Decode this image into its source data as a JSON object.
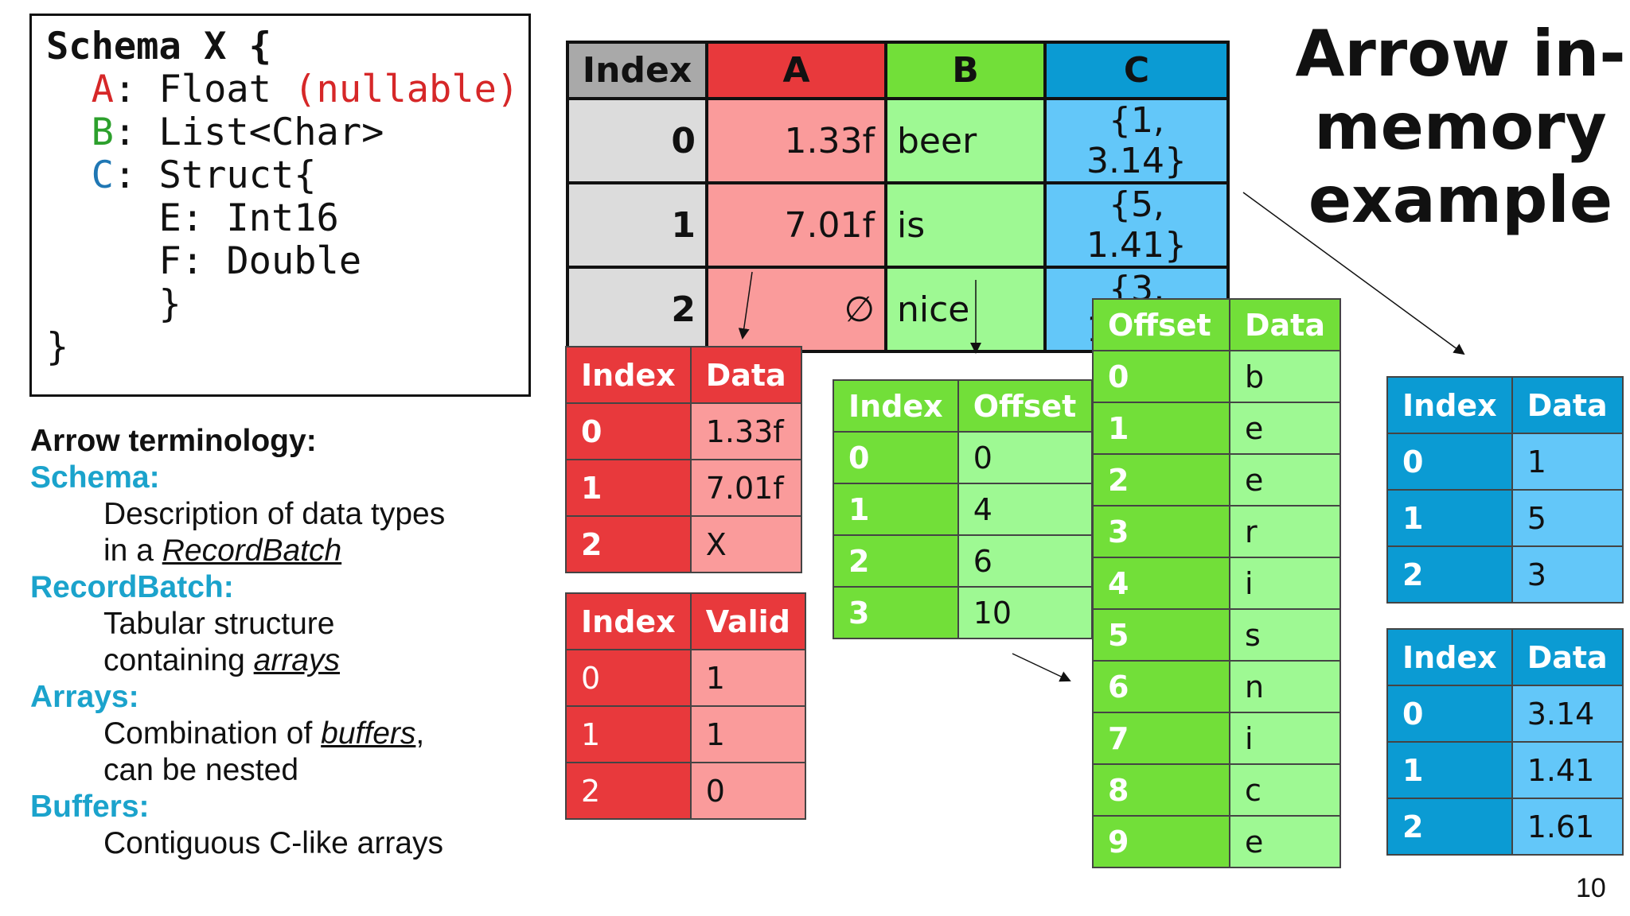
{
  "schema": {
    "lines": [
      {
        "parts": [
          {
            "text": "Schema X {",
            "cls": "s-dark s-bold"
          }
        ]
      },
      {
        "parts": [
          {
            "text": "  A",
            "cls": "s-red"
          },
          {
            "text": ": Float ",
            "cls": "s-dark"
          },
          {
            "text": "(nullable)",
            "cls": "s-red"
          }
        ]
      },
      {
        "parts": [
          {
            "text": "  B",
            "cls": "s-green"
          },
          {
            "text": ": List<Char>",
            "cls": "s-dark"
          }
        ]
      },
      {
        "parts": [
          {
            "text": "  C",
            "cls": "s-blue"
          },
          {
            "text": ": Struct{",
            "cls": "s-dark"
          }
        ]
      },
      {
        "parts": [
          {
            "text": "     E: Int16",
            "cls": "s-dark"
          }
        ]
      },
      {
        "parts": [
          {
            "text": "     F: Double",
            "cls": "s-dark"
          }
        ]
      },
      {
        "parts": [
          {
            "text": "     }",
            "cls": "s-dark"
          }
        ]
      },
      {
        "parts": [
          {
            "text": "}",
            "cls": "s-dark"
          }
        ]
      }
    ]
  },
  "terminology": {
    "heading": "Arrow terminology:",
    "items": [
      {
        "term": "Schema:",
        "desc": [
          [
            "Description of data types",
            ""
          ],
          [
            "in a ",
            "RecordBatch"
          ]
        ]
      },
      {
        "term": "RecordBatch:",
        "desc": [
          [
            "Tabular structure",
            ""
          ],
          [
            "containing ",
            "arrays"
          ]
        ]
      },
      {
        "term": "Arrays:",
        "desc": [
          [
            "Combination of ",
            "buffers",
            ","
          ],
          [
            "can be nested",
            ""
          ]
        ]
      },
      {
        "term": "Buffers:",
        "desc": [
          [
            "Contiguous C-like arrays",
            ""
          ]
        ]
      }
    ]
  },
  "title": [
    "Arrow in-",
    "memory",
    "example"
  ],
  "page_number": "10",
  "colors": {
    "red_head": "#e8393c",
    "red_light": "#fa9b9b",
    "green_head": "#72df39",
    "green_light": "#9ef993",
    "blue_head": "#0b9bd3",
    "blue_light": "#63c7f9",
    "gray_head": "#a9a9a9",
    "gray_light": "#dcdcdc"
  },
  "main_table": {
    "headers": [
      "Index",
      "A",
      "B",
      "C"
    ],
    "rows": [
      [
        "0",
        "1.33f",
        "beer",
        "{1, 3.14}"
      ],
      [
        "1",
        "7.01f",
        "is",
        "{5, 1.41}"
      ],
      [
        "2",
        "∅",
        "nice",
        "{3, 1.61}"
      ]
    ]
  },
  "buffers": {
    "a_data": {
      "headers": [
        "Index",
        "Data"
      ],
      "rows": [
        [
          "0",
          "1.33f"
        ],
        [
          "1",
          "7.01f"
        ],
        [
          "2",
          "X"
        ]
      ]
    },
    "a_valid": {
      "headers": [
        "Index",
        "Valid"
      ],
      "rows": [
        [
          "0",
          "1"
        ],
        [
          "1",
          "1"
        ],
        [
          "2",
          "0"
        ]
      ]
    },
    "b_offset": {
      "headers": [
        "Index",
        "Offset"
      ],
      "rows": [
        [
          "0",
          "0"
        ],
        [
          "1",
          "4"
        ],
        [
          "2",
          "6"
        ],
        [
          "3",
          "10"
        ]
      ]
    },
    "b_data": {
      "headers": [
        "Offset",
        "Data"
      ],
      "rows": [
        [
          "0",
          "b"
        ],
        [
          "1",
          "e"
        ],
        [
          "2",
          "e"
        ],
        [
          "3",
          "r"
        ],
        [
          "4",
          "i"
        ],
        [
          "5",
          "s"
        ],
        [
          "6",
          "n"
        ],
        [
          "7",
          "i"
        ],
        [
          "8",
          "c"
        ],
        [
          "9",
          "e"
        ]
      ]
    },
    "c_e": {
      "headers": [
        "Index",
        "Data"
      ],
      "rows": [
        [
          "0",
          "1"
        ],
        [
          "1",
          "5"
        ],
        [
          "2",
          "3"
        ]
      ]
    },
    "c_f": {
      "headers": [
        "Index",
        "Data"
      ],
      "rows": [
        [
          "0",
          "3.14"
        ],
        [
          "1",
          "1.41"
        ],
        [
          "2",
          "1.61"
        ]
      ]
    }
  }
}
